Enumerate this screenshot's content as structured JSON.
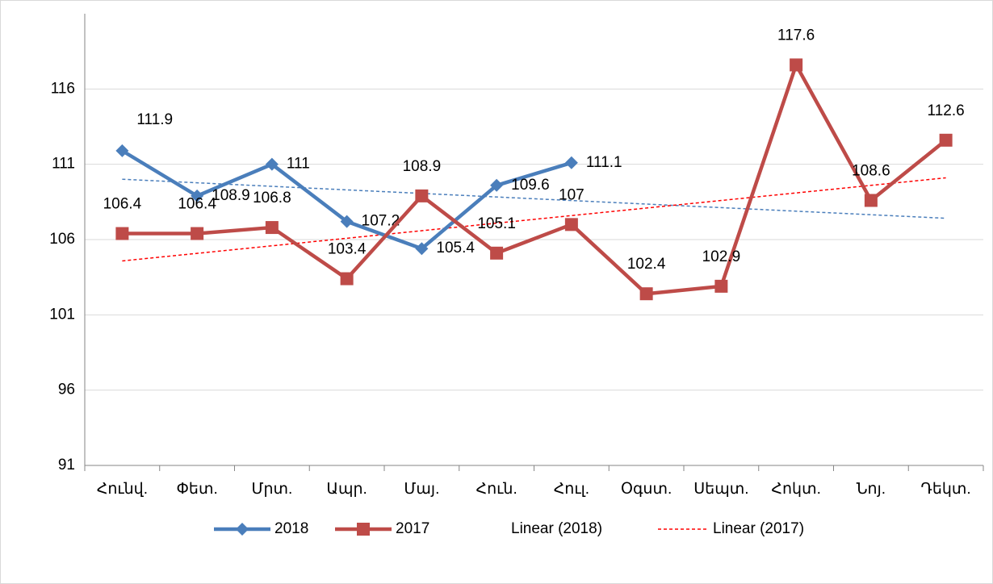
{
  "chart_data": {
    "type": "line",
    "categories": [
      "Հունվ.",
      "Փետ.",
      "Մրտ.",
      "Ապր.",
      "Մայ.",
      "Հուն.",
      "Հուլ.",
      "Օգստ.",
      "Սեպտ.",
      "Հոկտ.",
      "Նոյ.",
      "Դեկտ."
    ],
    "series": [
      {
        "name": "2018",
        "color": "#4a7ebb",
        "marker": "diamond",
        "values": [
          111.9,
          108.9,
          111,
          107.2,
          105.4,
          109.6,
          111.1,
          null,
          null,
          null,
          null,
          null
        ]
      },
      {
        "name": "2017",
        "color": "#be4b48",
        "marker": "square",
        "values": [
          106.4,
          106.4,
          106.8,
          103.4,
          108.9,
          105.1,
          107,
          102.4,
          102.9,
          117.6,
          108.6,
          112.6
        ]
      }
    ],
    "trendlines": [
      {
        "name": "Linear (2018)",
        "series": 0,
        "color": "#4a7ebb"
      },
      {
        "name": "Linear (2017)",
        "series": 1,
        "color": "#ff0000"
      }
    ],
    "ylim": [
      91,
      121
    ],
    "yticks": [
      91,
      96,
      101,
      106,
      111,
      116
    ],
    "grid": true,
    "legend": "bottom"
  }
}
